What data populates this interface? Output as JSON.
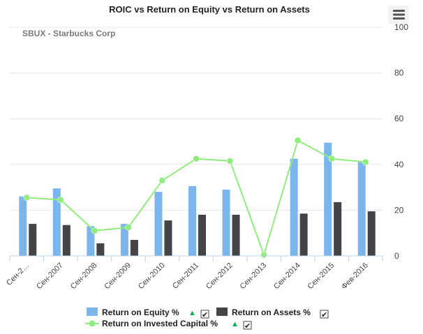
{
  "chart_data": {
    "type": "bar",
    "title": "ROIC vs Return on Equity vs Return on Assets",
    "subtitle": "SBUX - Starbucks Corp",
    "categories": [
      "Сен-2…",
      "Сен-2007",
      "Сен-2008",
      "Сен-2009",
      "Сен-2010",
      "Сен-2011",
      "Сен-2012",
      "Сен-2013",
      "Сен-2014",
      "Сен-2015",
      "Фев-2016"
    ],
    "ylim": [
      0,
      100
    ],
    "yticks": [
      0,
      20,
      40,
      60,
      80,
      100
    ],
    "grid": true,
    "legend_position": "bottom",
    "series": [
      {
        "name": "Return on Equity %",
        "kind": "bar",
        "color": "#7cb5ec",
        "values": [
          26,
          29.5,
          13,
          14,
          28,
          30.5,
          29,
          null,
          42.5,
          49.5,
          41.5
        ]
      },
      {
        "name": "Return on Assets %",
        "kind": "bar",
        "color": "#434348",
        "values": [
          14,
          13.5,
          5.5,
          7,
          15.5,
          18,
          18,
          null,
          18.5,
          23.5,
          19.5
        ]
      },
      {
        "name": "Return on Invested Capital %",
        "kind": "line",
        "color": "#90ed7d",
        "values": [
          25.5,
          24.5,
          11,
          12.5,
          33,
          42.5,
          41.5,
          0.5,
          50.5,
          42.5,
          41
        ]
      }
    ]
  },
  "legend": {
    "checkbox_mark": "✔",
    "trend_mark": "▲",
    "trend_color": "#00b050"
  },
  "menu_icon": "hamburger-menu-icon"
}
